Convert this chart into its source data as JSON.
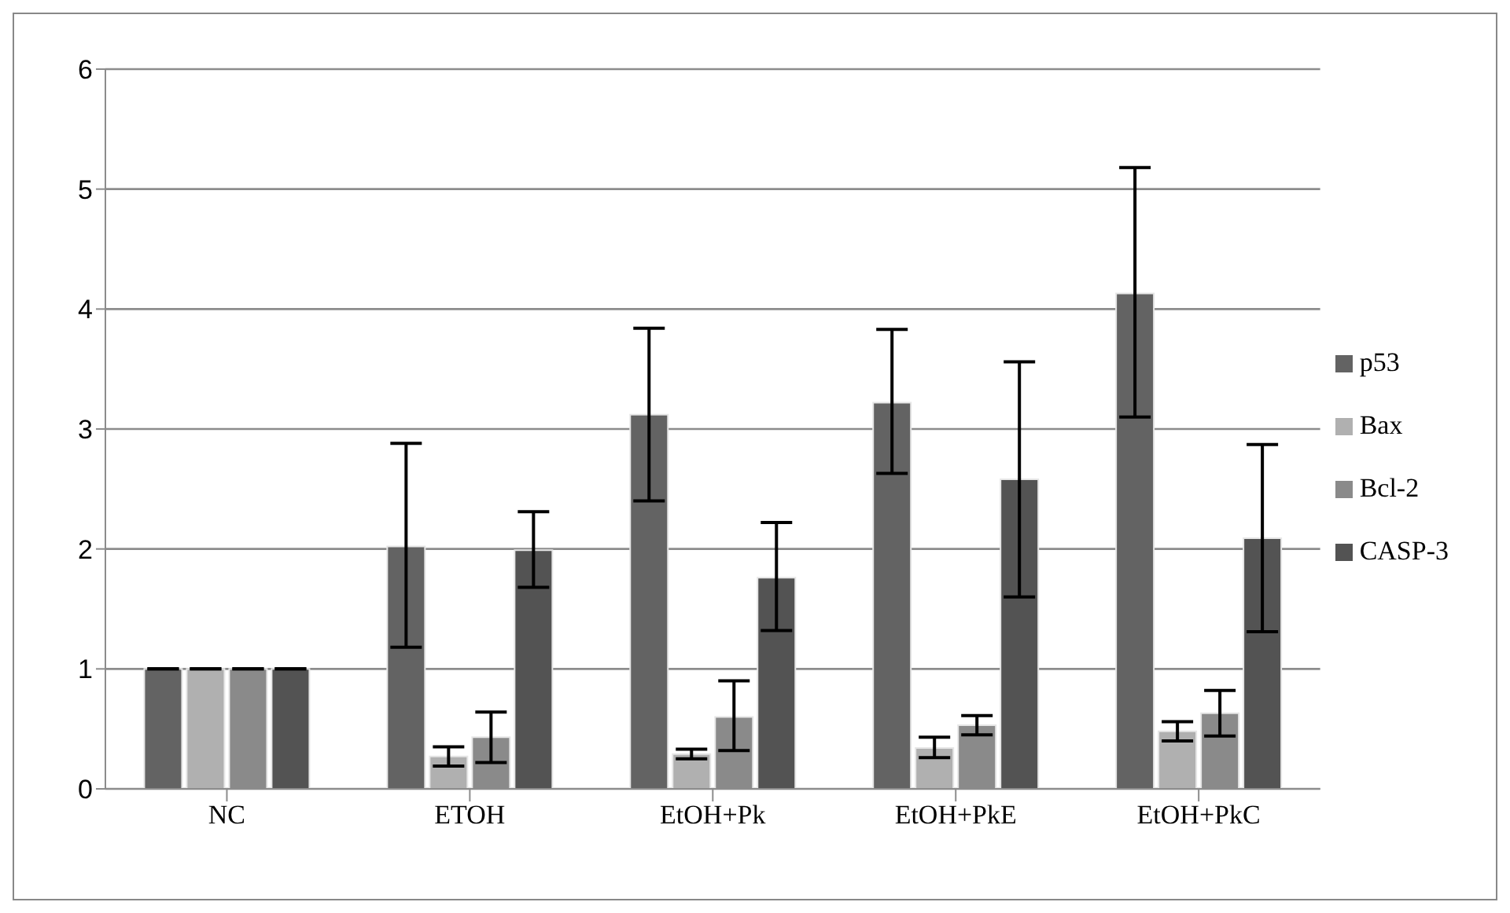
{
  "chart_data": {
    "type": "bar",
    "categories": [
      "NC",
      "ETOH",
      "EtOH+Pk",
      "EtOH+PkE",
      "EtOH+PkC"
    ],
    "series": [
      {
        "name": "p53",
        "color": "#636363",
        "values": [
          1,
          2.02,
          3.12,
          3.22,
          4.13
        ],
        "errors": [
          null,
          [
            1.18,
            2.88
          ],
          [
            2.4,
            3.84
          ],
          [
            2.63,
            3.83
          ],
          [
            3.1,
            5.18
          ]
        ]
      },
      {
        "name": "Bax",
        "color": "#b0b0b0",
        "values": [
          1,
          0.27,
          0.29,
          0.34,
          0.48
        ],
        "errors": [
          null,
          [
            0.19,
            0.35
          ],
          [
            0.25,
            0.33
          ],
          [
            0.26,
            0.43
          ],
          [
            0.4,
            0.56
          ]
        ]
      },
      {
        "name": "Bcl-2",
        "color": "#8a8a8a",
        "values": [
          1,
          0.43,
          0.6,
          0.53,
          0.63
        ],
        "errors": [
          null,
          [
            0.22,
            0.64
          ],
          [
            0.32,
            0.9
          ],
          [
            0.45,
            0.61
          ],
          [
            0.44,
            0.82
          ]
        ]
      },
      {
        "name": "CASP-3",
        "color": "#535353",
        "values": [
          1,
          1.99,
          1.76,
          2.58,
          2.09
        ],
        "errors": [
          null,
          [
            1.68,
            2.31
          ],
          [
            1.32,
            2.22
          ],
          [
            1.6,
            3.56
          ],
          [
            1.31,
            2.87
          ]
        ]
      }
    ],
    "ylim": [
      0,
      6
    ],
    "yticks": [
      0,
      1,
      2,
      3,
      4,
      5,
      6
    ],
    "grid": "y",
    "legend": "right"
  }
}
